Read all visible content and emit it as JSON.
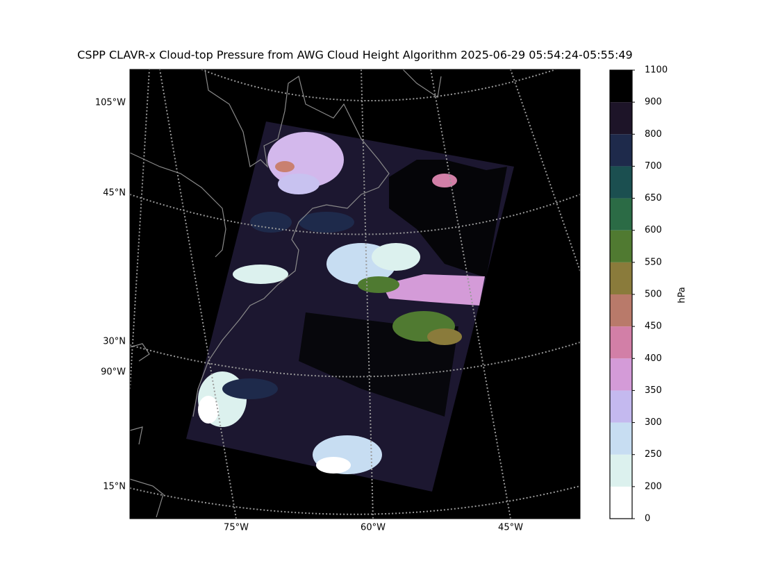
{
  "title": "CSPP CLAVR-x Cloud-top Pressure from AWG Cloud Height Algorithm 2025-06-29 05:54:24-05:55:49",
  "map": {
    "lon_labels": [
      "75°W",
      "60°W",
      "45°W"
    ],
    "lat_labels": [
      "105°W",
      "45°N",
      "30°N",
      "90°W",
      "15°N"
    ]
  },
  "colorbar": {
    "label": "hPa",
    "ticks": [
      0,
      200,
      250,
      300,
      350,
      400,
      450,
      500,
      550,
      600,
      650,
      700,
      800,
      900,
      1100
    ],
    "colors": [
      "#ffffff",
      "#dcf1ee",
      "#c7ddf2",
      "#c4b9ef",
      "#d49bd8",
      "#d27fa7",
      "#b97a6a",
      "#8a7b3b",
      "#507a31",
      "#2b6b45",
      "#1b4f50",
      "#1e2a4b",
      "#1d1428",
      "#000000"
    ]
  }
}
